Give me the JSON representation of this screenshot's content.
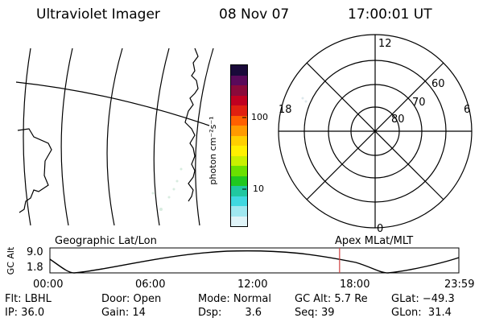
{
  "header": {
    "instrument": "Ultraviolet Imager",
    "date": "08 Nov 07",
    "time": "17:00:01 UT"
  },
  "colorbar": {
    "unit_label": "photon cm⁻²s⁻¹",
    "tick_high": "100",
    "tick_low": "10",
    "colors": [
      "#1a0a3a",
      "#5a0a5a",
      "#8a0a3a",
      "#c00020",
      "#e02010",
      "#ff6000",
      "#ff9a00",
      "#ffcf00",
      "#fff000",
      "#c8f000",
      "#6ae000",
      "#20c820",
      "#20c8a0",
      "#40d8e0",
      "#a0e8f0",
      "#e0f4f8"
    ]
  },
  "polar_plot": {
    "label_top": "12",
    "label_left": "18",
    "label_right": "6",
    "label_bottom": "0",
    "ring_labels": [
      "60",
      "70",
      "80"
    ]
  },
  "altitude_panel": {
    "left_caption": "Geographic Lat/Lon",
    "right_caption": "Apex MLat/MLT",
    "y_axis_label": "GC Alt",
    "y_tick_high": "9.0",
    "y_tick_low": "1.8",
    "x_ticks": [
      "00:00",
      "06:00",
      "12:00",
      "18:00",
      "23:59"
    ],
    "marker_time_hours": 17.0,
    "marker_color": "#d04040"
  },
  "status": {
    "row1": {
      "flt": "Flt: LBHL",
      "door": "Door: Open",
      "mode": "Mode: Normal",
      "gc_alt": "GC Alt: 5.7 Re",
      "glat": "GLat: −49.3"
    },
    "row2": {
      "ip": "IP: 36.0",
      "gain": "Gain: 14",
      "dsp": "Dsp:       3.6",
      "seq": "Seq: 39",
      "glon": "GLon:  31.4"
    }
  }
}
